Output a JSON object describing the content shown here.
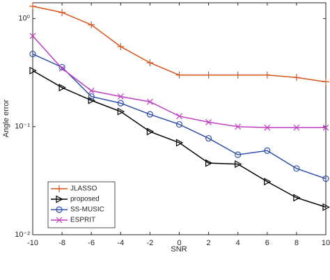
{
  "chart_data": {
    "type": "line",
    "x_label": "SNR",
    "y_label": "Angle error",
    "x": [
      -10,
      -8,
      -6,
      -4,
      -2,
      0,
      2,
      4,
      6,
      8,
      10
    ],
    "xlim": [
      -10,
      10
    ],
    "xticks": [
      -10,
      -8,
      -6,
      -4,
      -2,
      0,
      2,
      4,
      6,
      8,
      10
    ],
    "ylim": [
      0.01,
      1.4
    ],
    "log_y": true,
    "yticks": [
      {
        "value": 0.01,
        "label": "10⁻²"
      },
      {
        "value": 0.1,
        "label": "10⁻¹"
      },
      {
        "value": 1,
        "label": "10⁰"
      }
    ],
    "legend": "lower left",
    "series": [
      {
        "name": "JLASSO",
        "color": "#d95319",
        "marker": "plus",
        "values": [
          1.3,
          1.14,
          0.875,
          0.55,
          0.39,
          0.3,
          0.3,
          0.3,
          0.3,
          0.285,
          0.26
        ]
      },
      {
        "name": "proposed",
        "color": "#000000",
        "marker": "triangle-right",
        "values": [
          0.33,
          0.23,
          0.175,
          0.138,
          0.09,
          0.071,
          0.046,
          0.045,
          0.031,
          0.022,
          0.018
        ]
      },
      {
        "name": "SS-MUSIC",
        "color": "#2f4fa8",
        "marker": "circle",
        "values": [
          0.47,
          0.355,
          0.19,
          0.165,
          0.13,
          0.105,
          0.078,
          0.055,
          0.06,
          0.041,
          0.033
        ]
      },
      {
        "name": "ESPRIT",
        "color": "#c03fc0",
        "marker": "x",
        "values": [
          0.69,
          0.345,
          0.215,
          0.19,
          0.17,
          0.125,
          0.11,
          0.1,
          0.098,
          0.098,
          0.098
        ]
      }
    ]
  }
}
